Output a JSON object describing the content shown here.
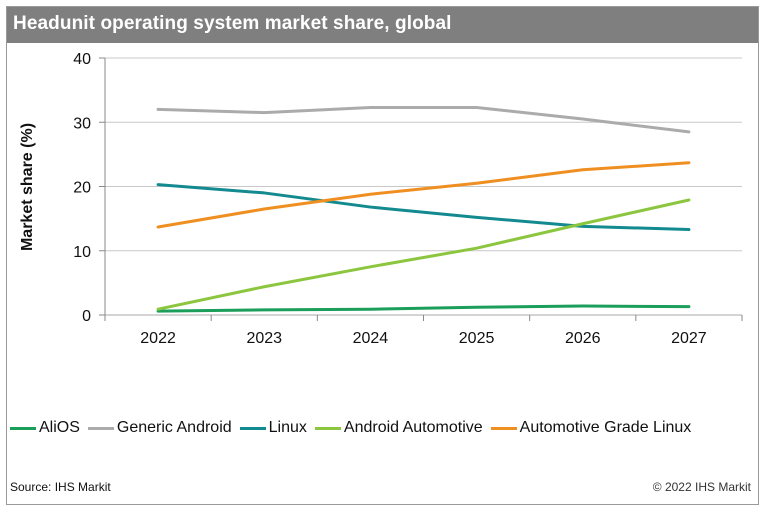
{
  "title": "Headunit operating system market share, global",
  "footer": {
    "source": "Source: IHS Markit",
    "copyright": "© 2022 IHS Markit"
  },
  "chart_data": {
    "type": "line",
    "title": "Headunit operating system market share, global",
    "xlabel": "",
    "ylabel": "Market  share (%)",
    "x": [
      "2022",
      "2023",
      "2024",
      "2025",
      "2026",
      "2027"
    ],
    "ylim": [
      0,
      40
    ],
    "yticks": [
      0,
      10,
      20,
      30,
      40
    ],
    "grid": true,
    "legend_position": "bottom",
    "series": [
      {
        "name": "AliOS",
        "color": "#1a9e5a",
        "values": [
          0.6,
          0.8,
          0.9,
          1.2,
          1.4,
          1.3
        ]
      },
      {
        "name": "Generic Android",
        "color": "#ababab",
        "values": [
          32.0,
          31.5,
          32.3,
          32.3,
          30.5,
          28.5
        ]
      },
      {
        "name": "Linux",
        "color": "#138a8f",
        "values": [
          20.3,
          19.0,
          16.8,
          15.2,
          13.8,
          13.3
        ]
      },
      {
        "name": "Android Automotive",
        "color": "#8cc63f",
        "values": [
          0.9,
          4.4,
          7.5,
          10.4,
          14.2,
          17.9
        ]
      },
      {
        "name": "Automotive Grade Linux",
        "color": "#ef8f22",
        "values": [
          13.7,
          16.5,
          18.8,
          20.5,
          22.6,
          23.7
        ]
      }
    ]
  }
}
